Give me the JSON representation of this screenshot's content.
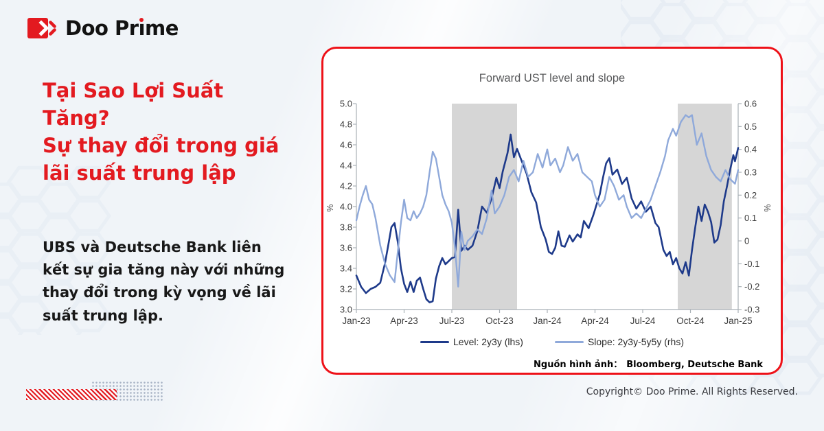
{
  "brand": {
    "name_start": "Doo Pr",
    "name_dotless_i": "ı",
    "name_end": "me"
  },
  "headline": "Tại Sao Lợi Suất\nTăng?\nSự thay đổi trong giá\nlãi suất trung lập",
  "body": "UBS và Deutsche Bank liên\nkết sự gia tăng này với những\nthay đổi trong kỳ vọng về lãi\nsuất trung lập.",
  "chart_card": {
    "source_label": "Nguồn hình ảnh：",
    "source_value": "Bloomberg, Deutsche Bank"
  },
  "footer": {
    "copyright": "Copyright© Doo Prime. All Rights Reserved."
  },
  "colors": {
    "brand_red": "#e31a20",
    "card_border_red": "#ee1118",
    "level_line": "#1e3a8a",
    "slope_line": "#8fa9da",
    "shaded_band": "#d6d6d6",
    "axis_gray": "#a9b0b6",
    "hex_pattern": "#e4ebf3"
  },
  "chart_data": {
    "type": "line",
    "title": "Forward UST level and slope",
    "x_tick_labels": [
      "Jan-23",
      "Apr-23",
      "Jul-23",
      "Oct-23",
      "Jan-24",
      "Apr-24",
      "Jul-24",
      "Oct-24",
      "Jan-25"
    ],
    "x_range_months": [
      0,
      24
    ],
    "left_axis": {
      "label": "%",
      "min": 3.0,
      "max": 5.0,
      "step": 0.2
    },
    "right_axis": {
      "label": "%",
      "min": -0.3,
      "max": 0.6,
      "step": 0.1
    },
    "grid": false,
    "legend_position": "bottom",
    "shaded_bands_months": [
      [
        6.0,
        10.1
      ],
      [
        20.2,
        23.6
      ]
    ],
    "series": [
      {
        "name": "Level: 2y3y (lhs)",
        "axis": "left",
        "color": "#1e3a8a",
        "width": 2.6,
        "points": [
          [
            0,
            3.33
          ],
          [
            0.3,
            3.22
          ],
          [
            0.6,
            3.16
          ],
          [
            0.9,
            3.2
          ],
          [
            1.2,
            3.22
          ],
          [
            1.5,
            3.26
          ],
          [
            1.8,
            3.45
          ],
          [
            2,
            3.62
          ],
          [
            2.2,
            3.8
          ],
          [
            2.4,
            3.84
          ],
          [
            2.6,
            3.66
          ],
          [
            2.8,
            3.4
          ],
          [
            3,
            3.25
          ],
          [
            3.2,
            3.17
          ],
          [
            3.4,
            3.27
          ],
          [
            3.6,
            3.17
          ],
          [
            3.8,
            3.28
          ],
          [
            4,
            3.31
          ],
          [
            4.2,
            3.2
          ],
          [
            4.4,
            3.1
          ],
          [
            4.6,
            3.07
          ],
          [
            4.8,
            3.08
          ],
          [
            5,
            3.3
          ],
          [
            5.2,
            3.42
          ],
          [
            5.4,
            3.5
          ],
          [
            5.6,
            3.44
          ],
          [
            5.8,
            3.47
          ],
          [
            6,
            3.5
          ],
          [
            6.2,
            3.51
          ],
          [
            6.4,
            3.97
          ],
          [
            6.6,
            3.57
          ],
          [
            6.8,
            3.62
          ],
          [
            7,
            3.58
          ],
          [
            7.3,
            3.62
          ],
          [
            7.6,
            3.76
          ],
          [
            7.9,
            4
          ],
          [
            8.2,
            3.94
          ],
          [
            8.5,
            4.08
          ],
          [
            8.8,
            4.28
          ],
          [
            9,
            4.18
          ],
          [
            9.2,
            4.34
          ],
          [
            9.5,
            4.52
          ],
          [
            9.7,
            4.7
          ],
          [
            9.9,
            4.48
          ],
          [
            10.1,
            4.56
          ],
          [
            10.4,
            4.44
          ],
          [
            10.7,
            4.32
          ],
          [
            11,
            4.14
          ],
          [
            11.3,
            4.04
          ],
          [
            11.6,
            3.8
          ],
          [
            11.9,
            3.68
          ],
          [
            12.1,
            3.56
          ],
          [
            12.3,
            3.54
          ],
          [
            12.5,
            3.6
          ],
          [
            12.7,
            3.76
          ],
          [
            12.9,
            3.62
          ],
          [
            13.1,
            3.61
          ],
          [
            13.4,
            3.72
          ],
          [
            13.6,
            3.66
          ],
          [
            13.9,
            3.73
          ],
          [
            14.1,
            3.7
          ],
          [
            14.3,
            3.86
          ],
          [
            14.6,
            3.79
          ],
          [
            14.9,
            3.92
          ],
          [
            15.1,
            4.02
          ],
          [
            15.3,
            4.12
          ],
          [
            15.5,
            4.28
          ],
          [
            15.7,
            4.42
          ],
          [
            15.9,
            4.47
          ],
          [
            16.1,
            4.31
          ],
          [
            16.4,
            4.36
          ],
          [
            16.7,
            4.22
          ],
          [
            17,
            4.28
          ],
          [
            17.3,
            4.08
          ],
          [
            17.6,
            3.98
          ],
          [
            17.9,
            4.05
          ],
          [
            18.2,
            3.95
          ],
          [
            18.5,
            4.0
          ],
          [
            18.8,
            3.84
          ],
          [
            19,
            3.8
          ],
          [
            19.3,
            3.58
          ],
          [
            19.5,
            3.52
          ],
          [
            19.7,
            3.56
          ],
          [
            19.9,
            3.44
          ],
          [
            20.1,
            3.5
          ],
          [
            20.3,
            3.4
          ],
          [
            20.5,
            3.35
          ],
          [
            20.7,
            3.46
          ],
          [
            20.9,
            3.33
          ],
          [
            21.1,
            3.58
          ],
          [
            21.3,
            3.8
          ],
          [
            21.5,
            4
          ],
          [
            21.7,
            3.86
          ],
          [
            21.9,
            4.02
          ],
          [
            22.1,
            3.95
          ],
          [
            22.3,
            3.85
          ],
          [
            22.5,
            3.65
          ],
          [
            22.7,
            3.68
          ],
          [
            22.9,
            3.82
          ],
          [
            23.1,
            4.05
          ],
          [
            23.3,
            4.2
          ],
          [
            23.5,
            4.36
          ],
          [
            23.7,
            4.5
          ],
          [
            23.8,
            4.44
          ],
          [
            24,
            4.57
          ]
        ]
      },
      {
        "name": "Slope: 2y3y-5y5y (rhs)",
        "axis": "right",
        "color": "#8fa9da",
        "width": 2.4,
        "points": [
          [
            0,
            0.09
          ],
          [
            0.2,
            0.15
          ],
          [
            0.4,
            0.2
          ],
          [
            0.6,
            0.24
          ],
          [
            0.8,
            0.18
          ],
          [
            1,
            0.16
          ],
          [
            1.2,
            0.1
          ],
          [
            1.5,
            -0.02
          ],
          [
            1.8,
            -0.1
          ],
          [
            2.1,
            -0.15
          ],
          [
            2.4,
            -0.18
          ],
          [
            2.6,
            -0.05
          ],
          [
            2.8,
            0.08
          ],
          [
            3,
            0.18
          ],
          [
            3.2,
            0.1
          ],
          [
            3.4,
            0.09
          ],
          [
            3.6,
            0.13
          ],
          [
            3.8,
            0.1
          ],
          [
            4,
            0.12
          ],
          [
            4.2,
            0.15
          ],
          [
            4.4,
            0.2
          ],
          [
            4.6,
            0.3
          ],
          [
            4.8,
            0.39
          ],
          [
            5,
            0.36
          ],
          [
            5.2,
            0.28
          ],
          [
            5.4,
            0.2
          ],
          [
            5.6,
            0.16
          ],
          [
            5.8,
            0.13
          ],
          [
            6,
            0.08
          ],
          [
            6.2,
            -0.03
          ],
          [
            6.4,
            -0.2
          ],
          [
            6.6,
            0.04
          ],
          [
            6.8,
            -0.04
          ],
          [
            7,
            0
          ],
          [
            7.3,
            0.02
          ],
          [
            7.6,
            0.05
          ],
          [
            7.9,
            0.03
          ],
          [
            8.2,
            0.1
          ],
          [
            8.5,
            0.22
          ],
          [
            8.7,
            0.12
          ],
          [
            9,
            0.15
          ],
          [
            9.3,
            0.2
          ],
          [
            9.6,
            0.28
          ],
          [
            9.9,
            0.31
          ],
          [
            10.2,
            0.26
          ],
          [
            10.5,
            0.35
          ],
          [
            10.8,
            0.28
          ],
          [
            11.1,
            0.3
          ],
          [
            11.4,
            0.38
          ],
          [
            11.7,
            0.32
          ],
          [
            12,
            0.4
          ],
          [
            12.2,
            0.33
          ],
          [
            12.5,
            0.36
          ],
          [
            12.8,
            0.3
          ],
          [
            13,
            0.33
          ],
          [
            13.3,
            0.41
          ],
          [
            13.6,
            0.35
          ],
          [
            13.9,
            0.38
          ],
          [
            14.2,
            0.3
          ],
          [
            14.5,
            0.28
          ],
          [
            14.8,
            0.26
          ],
          [
            15,
            0.2
          ],
          [
            15.3,
            0.15
          ],
          [
            15.6,
            0.18
          ],
          [
            15.9,
            0.28
          ],
          [
            16.2,
            0.24
          ],
          [
            16.5,
            0.18
          ],
          [
            16.8,
            0.2
          ],
          [
            17,
            0.15
          ],
          [
            17.3,
            0.1
          ],
          [
            17.6,
            0.12
          ],
          [
            17.9,
            0.1
          ],
          [
            18.2,
            0.14
          ],
          [
            18.5,
            0.18
          ],
          [
            18.8,
            0.24
          ],
          [
            19.1,
            0.3
          ],
          [
            19.4,
            0.37
          ],
          [
            19.6,
            0.44
          ],
          [
            19.9,
            0.49
          ],
          [
            20.1,
            0.46
          ],
          [
            20.4,
            0.52
          ],
          [
            20.7,
            0.55
          ],
          [
            20.9,
            0.54
          ],
          [
            21.1,
            0.55
          ],
          [
            21.4,
            0.42
          ],
          [
            21.7,
            0.47
          ],
          [
            22,
            0.37
          ],
          [
            22.3,
            0.31
          ],
          [
            22.6,
            0.28
          ],
          [
            22.9,
            0.26
          ],
          [
            23.2,
            0.31
          ],
          [
            23.5,
            0.27
          ],
          [
            23.8,
            0.25
          ],
          [
            24,
            0.31
          ]
        ]
      }
    ]
  }
}
